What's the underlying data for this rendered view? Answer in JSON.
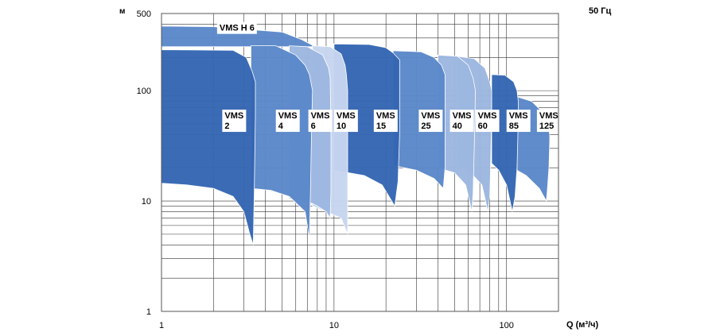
{
  "chart_data": {
    "type": "area",
    "frequency_label": "50 Гц",
    "xlabel": "Q (м³/ч)",
    "ylabel": "м",
    "x_scale": "log",
    "y_scale": "log",
    "xlim": [
      1,
      200
    ],
    "ylim": [
      1,
      500
    ],
    "x_ticks": [
      1,
      10,
      100
    ],
    "x_tick_labels": [
      "1",
      "10",
      "100"
    ],
    "y_ticks": [
      1,
      10,
      100,
      500
    ],
    "y_tick_labels": [
      "1",
      "10",
      "100",
      "500"
    ],
    "grid": true,
    "colors": {
      "dark": "#3566B3",
      "mid": "#5B88C9",
      "light": "#9CB7E0",
      "pale": "#C6D5EE",
      "border": "#ffffff"
    },
    "series": [
      {
        "name": "VMS H 6",
        "label_lines": [
          "VMS H 6"
        ],
        "label_pos": [
          2.1,
          355
        ],
        "color": "mid",
        "upper": [
          [
            1,
            385
          ],
          [
            2,
            380
          ],
          [
            5,
            340
          ],
          [
            6.5,
            290
          ],
          [
            7.8,
            250
          ],
          [
            8.6,
            250
          ]
        ],
        "lower": [
          [
            8.6,
            250
          ],
          [
            1,
            250
          ]
        ]
      },
      {
        "name": "VMS 125",
        "label_lines": [
          "VMS",
          "125"
        ],
        "label_pos": [
          150,
          57
        ],
        "color": "mid",
        "upper": [
          [
            115,
            88
          ],
          [
            140,
            80
          ],
          [
            160,
            65
          ],
          [
            172,
            50
          ],
          [
            178,
            40
          ],
          [
            178,
            36
          ]
        ],
        "lower": [
          [
            178,
            36
          ],
          [
            176,
            20
          ],
          [
            172,
            12
          ],
          [
            170,
            10
          ],
          [
            155,
            13
          ],
          [
            130,
            17
          ],
          [
            115,
            19
          ]
        ]
      },
      {
        "name": "VMS 85",
        "label_lines": [
          "VMS",
          "85"
        ],
        "label_pos": [
          100,
          57
        ],
        "color": "dark",
        "upper": [
          [
            82,
            140
          ],
          [
            98,
            138
          ],
          [
            110,
            120
          ],
          [
            115,
            100
          ],
          [
            117,
            80
          ]
        ],
        "lower": [
          [
            117,
            80
          ],
          [
            117,
            55
          ],
          [
            115,
            20
          ],
          [
            112,
            11
          ],
          [
            108,
            8
          ],
          [
            100,
            14
          ],
          [
            90,
            19
          ],
          [
            82,
            22
          ]
        ]
      },
      {
        "name": "VMS 60",
        "label_lines": [
          "VMS",
          "60"
        ],
        "label_pos": [
          66,
          57
        ],
        "color": "light",
        "upper": [
          [
            52,
            205
          ],
          [
            65,
            195
          ],
          [
            75,
            160
          ],
          [
            80,
            120
          ],
          [
            82,
            100
          ]
        ],
        "lower": [
          [
            82,
            100
          ],
          [
            82,
            60
          ],
          [
            81,
            25
          ],
          [
            80,
            11
          ],
          [
            78,
            8
          ],
          [
            72,
            14
          ],
          [
            60,
            19
          ],
          [
            52,
            21
          ]
        ]
      },
      {
        "name": "VMS 40",
        "label_lines": [
          "VMS",
          "40"
        ],
        "label_pos": [
          47,
          57
        ],
        "color": "light",
        "upper": [
          [
            40,
            210
          ],
          [
            52,
            205
          ],
          [
            60,
            170
          ],
          [
            64,
            130
          ],
          [
            66,
            100
          ]
        ],
        "lower": [
          [
            66,
            100
          ],
          [
            65,
            30
          ],
          [
            64,
            12
          ],
          [
            63,
            8
          ],
          [
            58,
            14
          ],
          [
            50,
            18
          ],
          [
            40,
            20
          ]
        ]
      },
      {
        "name": "VMS 25",
        "label_lines": [
          "VMS",
          "25"
        ],
        "label_pos": [
          31,
          57
        ],
        "color": "mid",
        "upper": [
          [
            22,
            230
          ],
          [
            32,
            225
          ],
          [
            38,
            200
          ],
          [
            42,
            170
          ],
          [
            44,
            140
          ],
          [
            44,
            100
          ]
        ],
        "lower": [
          [
            44,
            100
          ],
          [
            44,
            40
          ],
          [
            44,
            20
          ],
          [
            43,
            13
          ],
          [
            38,
            16
          ],
          [
            30,
            19
          ],
          [
            22,
            21
          ]
        ]
      },
      {
        "name": "VMS 15",
        "label_lines": [
          "VMS",
          "15"
        ],
        "label_pos": [
          17,
          57
        ],
        "color": "dark",
        "upper": [
          [
            10,
            265
          ],
          [
            16,
            262
          ],
          [
            20,
            245
          ],
          [
            22,
            220
          ],
          [
            24,
            190
          ],
          [
            24,
            100
          ]
        ],
        "lower": [
          [
            24,
            100
          ],
          [
            24,
            40
          ],
          [
            23.5,
            15
          ],
          [
            22.5,
            9
          ],
          [
            19,
            14
          ],
          [
            15,
            17
          ],
          [
            10,
            19
          ]
        ]
      },
      {
        "name": "VMS 10",
        "label_lines": [
          "VMS",
          "10"
        ],
        "label_pos": [
          10,
          57
        ],
        "color": "pale",
        "upper": [
          [
            7.5,
            255
          ],
          [
            9.5,
            250
          ],
          [
            11,
            215
          ],
          [
            11.6,
            170
          ],
          [
            11.8,
            140
          ],
          [
            12,
            100
          ]
        ],
        "lower": [
          [
            12,
            100
          ],
          [
            12,
            30
          ],
          [
            12,
            11
          ],
          [
            12,
            5
          ],
          [
            11.7,
            5.5
          ],
          [
            11,
            7
          ],
          [
            9,
            8
          ],
          [
            7.5,
            9
          ]
        ]
      },
      {
        "name": "VMS 6",
        "label_lines": [
          "VMS",
          "6"
        ],
        "label_pos": [
          7.1,
          57
        ],
        "color": "light",
        "upper": [
          [
            5.5,
            255
          ],
          [
            7,
            250
          ],
          [
            8.6,
            210
          ],
          [
            9.3,
            160
          ],
          [
            9.5,
            130
          ]
        ],
        "lower": [
          [
            9.5,
            130
          ],
          [
            9.6,
            40
          ],
          [
            9.6,
            12
          ],
          [
            9.5,
            7
          ],
          [
            9,
            8
          ],
          [
            8,
            9
          ],
          [
            7.5,
            9.5
          ],
          [
            6.5,
            10
          ],
          [
            5.5,
            10.5
          ]
        ]
      },
      {
        "name": "VMS 4",
        "label_lines": [
          "VMS",
          "4"
        ],
        "label_pos": [
          4.6,
          57
        ],
        "color": "mid",
        "upper": [
          [
            3.3,
            255
          ],
          [
            4.6,
            255
          ],
          [
            6,
            210
          ],
          [
            6.8,
            170
          ],
          [
            7.2,
            140
          ],
          [
            7.5,
            100
          ]
        ],
        "lower": [
          [
            7.5,
            100
          ],
          [
            7.4,
            40
          ],
          [
            7.3,
            12
          ],
          [
            7.2,
            4.5
          ],
          [
            6.8,
            8
          ],
          [
            5.5,
            11
          ],
          [
            4.3,
            12.5
          ],
          [
            3.3,
            13
          ]
        ]
      },
      {
        "name": "VMS 2",
        "label_lines": [
          "VMS",
          "2"
        ],
        "label_pos": [
          2.25,
          57
        ],
        "color": "dark",
        "upper": [
          [
            1,
            235
          ],
          [
            2.6,
            232
          ],
          [
            3.1,
            200
          ],
          [
            3.35,
            150
          ],
          [
            3.5,
            120
          ]
        ],
        "lower": [
          [
            3.5,
            120
          ],
          [
            3.5,
            60
          ],
          [
            3.45,
            12
          ],
          [
            3.4,
            4
          ],
          [
            3.25,
            5
          ],
          [
            3,
            8
          ],
          [
            2.6,
            11
          ],
          [
            2,
            13
          ],
          [
            1.4,
            14
          ],
          [
            1,
            14.5
          ]
        ]
      }
    ]
  }
}
